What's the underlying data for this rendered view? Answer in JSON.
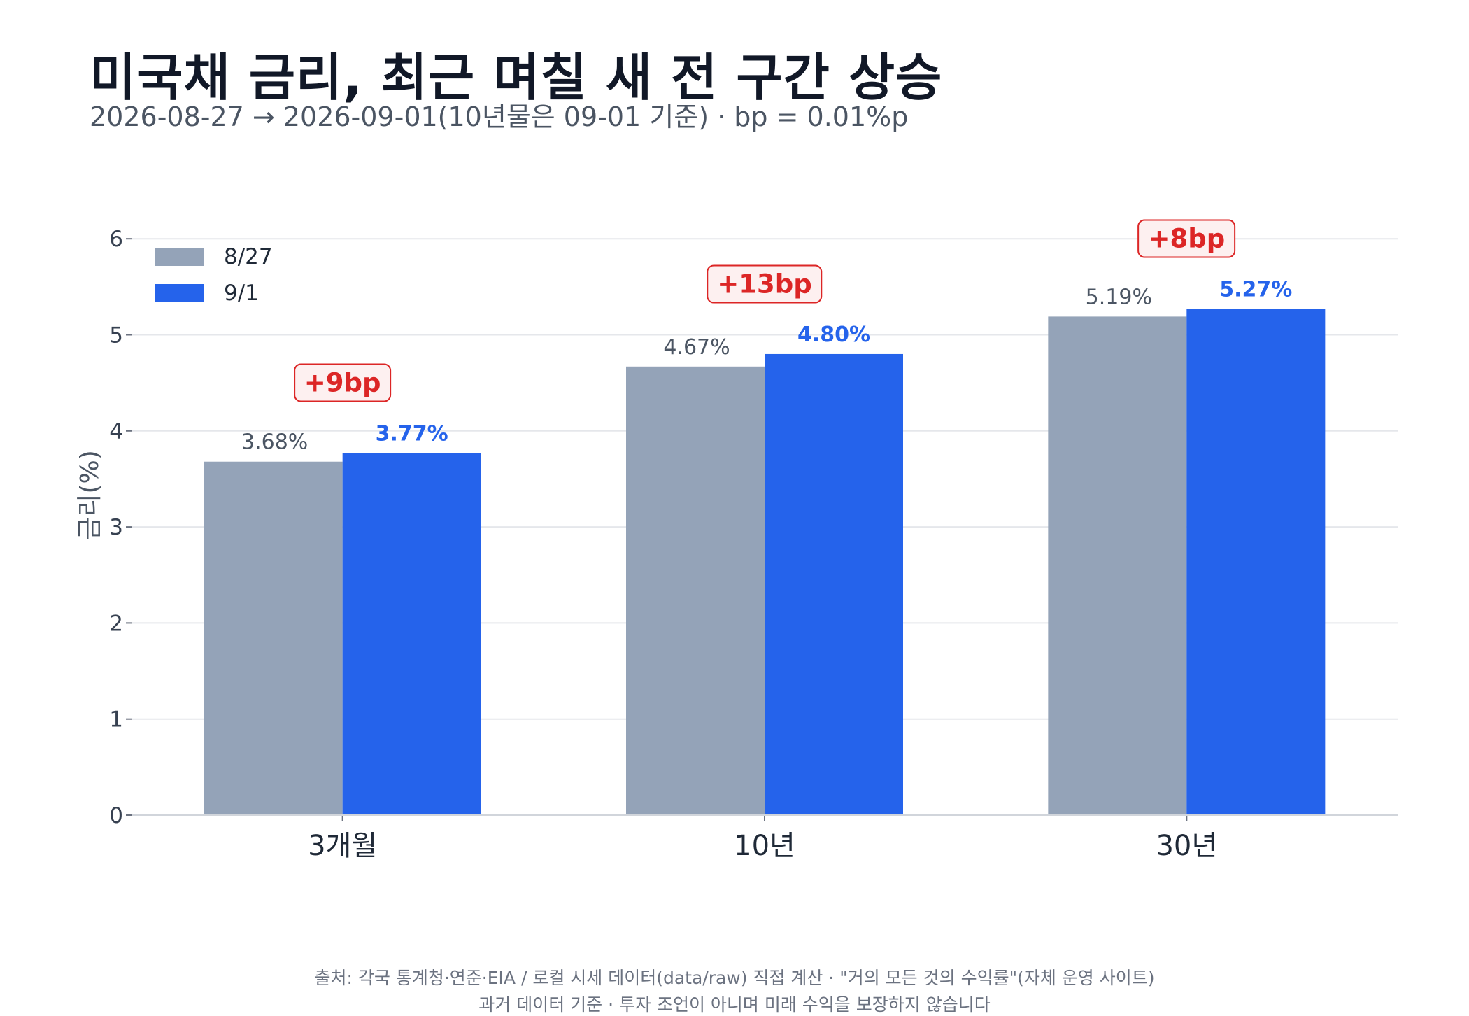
{
  "title": "미국채 금리, 최근 며칠 새 전 구간 상승",
  "subtitle": "2026-08-27 → 2026-09-01(10년물은 09-01 기준) · bp = 0.01%p",
  "footer": {
    "line1": "출처: 각국 통계청·연준·EIA / 로컬 시세 데이터(data/raw) 직접 계산 · \"거의 모든 것의 수익률\"(자체 운영 사이트)",
    "line2": "과거 데이터 기준 · 투자 조언이 아니며 미래 수익을 보장하지 않습니다"
  },
  "colors": {
    "before": "#94a3b8",
    "after": "#2563eb",
    "badge": "#dc2626"
  },
  "chart_data": {
    "type": "bar",
    "categories": [
      "3개월",
      "10년",
      "30년"
    ],
    "series": [
      {
        "name": "8/27",
        "values": [
          3.68,
          4.67,
          5.19
        ],
        "labels": [
          "3.68%",
          "4.67%",
          "5.19%"
        ]
      },
      {
        "name": "9/1",
        "values": [
          3.77,
          4.8,
          5.27
        ],
        "labels": [
          "3.77%",
          "4.80%",
          "5.27%"
        ]
      }
    ],
    "annotations": [
      "+9bp",
      "+13bp",
      "+8bp"
    ],
    "ylabel": "금리(%)",
    "ylim": [
      0,
      6.3
    ],
    "yticks": [
      "0",
      "1",
      "2",
      "3",
      "4",
      "5",
      "6"
    ],
    "grid": true,
    "legend_position": "top-left"
  }
}
